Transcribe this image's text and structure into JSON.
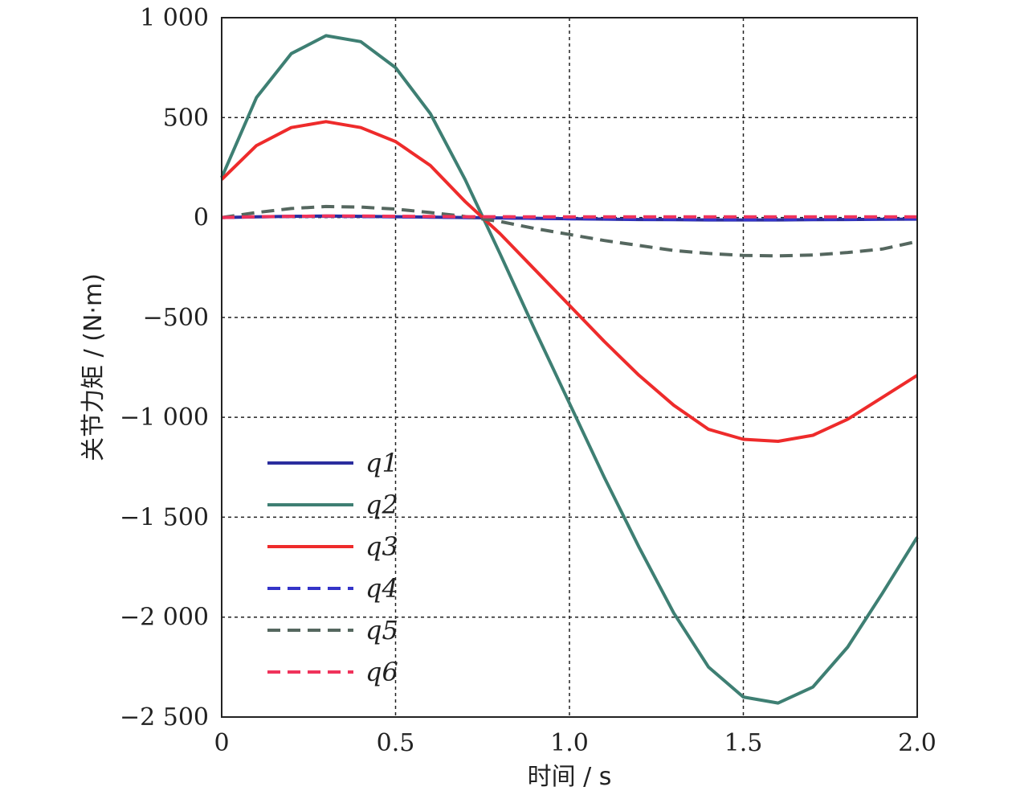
{
  "chart_data": {
    "type": "line",
    "xlabel": "时间 / s",
    "ylabel": "关节力矩 / (N·m)",
    "xlim": [
      0,
      2.0
    ],
    "ylim": [
      -2500,
      1000
    ],
    "x_ticks": [
      0,
      0.5,
      1.0,
      1.5,
      2.0
    ],
    "x_tick_labels": [
      "0",
      "0.5",
      "1.0",
      "1.5",
      "2.0"
    ],
    "y_ticks": [
      1000,
      500,
      0,
      -500,
      -1000,
      -1500,
      -2000,
      -2500
    ],
    "y_tick_labels": [
      "1 000",
      "500",
      "0",
      "−500",
      "−1 000",
      "−1 500",
      "−2 000",
      "−2 500"
    ],
    "grid": true,
    "legend_position": "bottom-left",
    "x": [
      0,
      0.1,
      0.2,
      0.3,
      0.4,
      0.5,
      0.6,
      0.7,
      0.8,
      0.9,
      1.0,
      1.1,
      1.2,
      1.3,
      1.4,
      1.5,
      1.6,
      1.7,
      1.8,
      1.9,
      2.0
    ],
    "series": [
      {
        "name": "q1",
        "style": "solid",
        "color": "#2b2d9e",
        "values": [
          0,
          3,
          6,
          7,
          6,
          4,
          2,
          0,
          -2,
          -4,
          -6,
          -8,
          -10,
          -11,
          -12,
          -12,
          -12,
          -11,
          -10,
          -9,
          -8
        ]
      },
      {
        "name": "q2",
        "style": "solid",
        "color": "#3e7f73",
        "values": [
          200,
          600,
          820,
          910,
          880,
          750,
          520,
          190,
          -180,
          -560,
          -930,
          -1300,
          -1650,
          -1980,
          -2250,
          -2400,
          -2430,
          -2350,
          -2150,
          -1880,
          -1600
        ]
      },
      {
        "name": "q3",
        "style": "solid",
        "color": "#ee2b2b",
        "values": [
          190,
          360,
          450,
          480,
          450,
          380,
          260,
          80,
          -80,
          -260,
          -440,
          -620,
          -790,
          -940,
          -1060,
          -1110,
          -1120,
          -1090,
          -1010,
          -900,
          -790
        ]
      },
      {
        "name": "q4",
        "style": "dashed",
        "color": "#3434c8",
        "values": [
          0,
          3,
          5,
          6,
          5,
          3,
          2,
          0,
          -2,
          -4,
          -6,
          -7,
          -8,
          -9,
          -10,
          -10,
          -10,
          -9,
          -8,
          -8,
          -7
        ]
      },
      {
        "name": "q5",
        "style": "dashed",
        "color": "#55675f",
        "values": [
          0,
          25,
          45,
          55,
          52,
          42,
          25,
          5,
          -20,
          -55,
          -85,
          -115,
          -140,
          -165,
          -180,
          -190,
          -192,
          -188,
          -175,
          -158,
          -120
        ]
      },
      {
        "name": "q6",
        "style": "dashed",
        "color": "#f0335b",
        "values": [
          0,
          4,
          6,
          7,
          7,
          6,
          5,
          4,
          4,
          3,
          3,
          3,
          3,
          3,
          3,
          3,
          3,
          3,
          3,
          3,
          3
        ]
      }
    ]
  }
}
